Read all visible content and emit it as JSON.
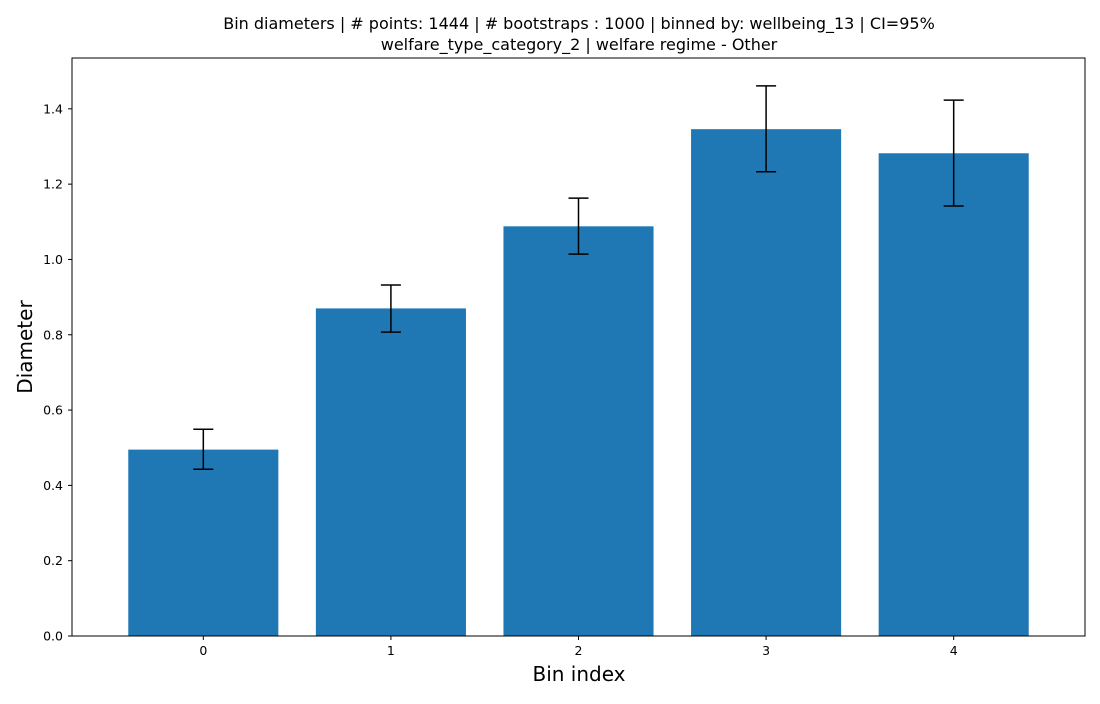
{
  "chart_data": {
    "type": "bar",
    "title": "Bin diameters | # points: 1444 | # bootstraps : 1000 | binned by: wellbeing_13 | CI=95%",
    "subtitle": "welfare_type_category_2 | welfare regime - Other",
    "xlabel": "Bin index",
    "ylabel": "Diameter",
    "categories": [
      "0",
      "1",
      "2",
      "3",
      "4"
    ],
    "values": [
      0.495,
      0.87,
      1.088,
      1.346,
      1.282
    ],
    "error_low": [
      0.443,
      0.807,
      1.014,
      1.233,
      1.142
    ],
    "error_high": [
      0.549,
      0.932,
      1.163,
      1.461,
      1.423
    ],
    "ylim": [
      0,
      1.535
    ],
    "yticks": [
      0.0,
      0.2,
      0.4,
      0.6,
      0.8,
      1.0,
      1.2,
      1.4
    ],
    "ytick_labels": [
      "0.0",
      "0.2",
      "0.4",
      "0.6",
      "0.8",
      "1.0",
      "1.2",
      "1.4"
    ],
    "grid": false,
    "bar_color": "#1f77b4",
    "error_color": "#000000"
  }
}
